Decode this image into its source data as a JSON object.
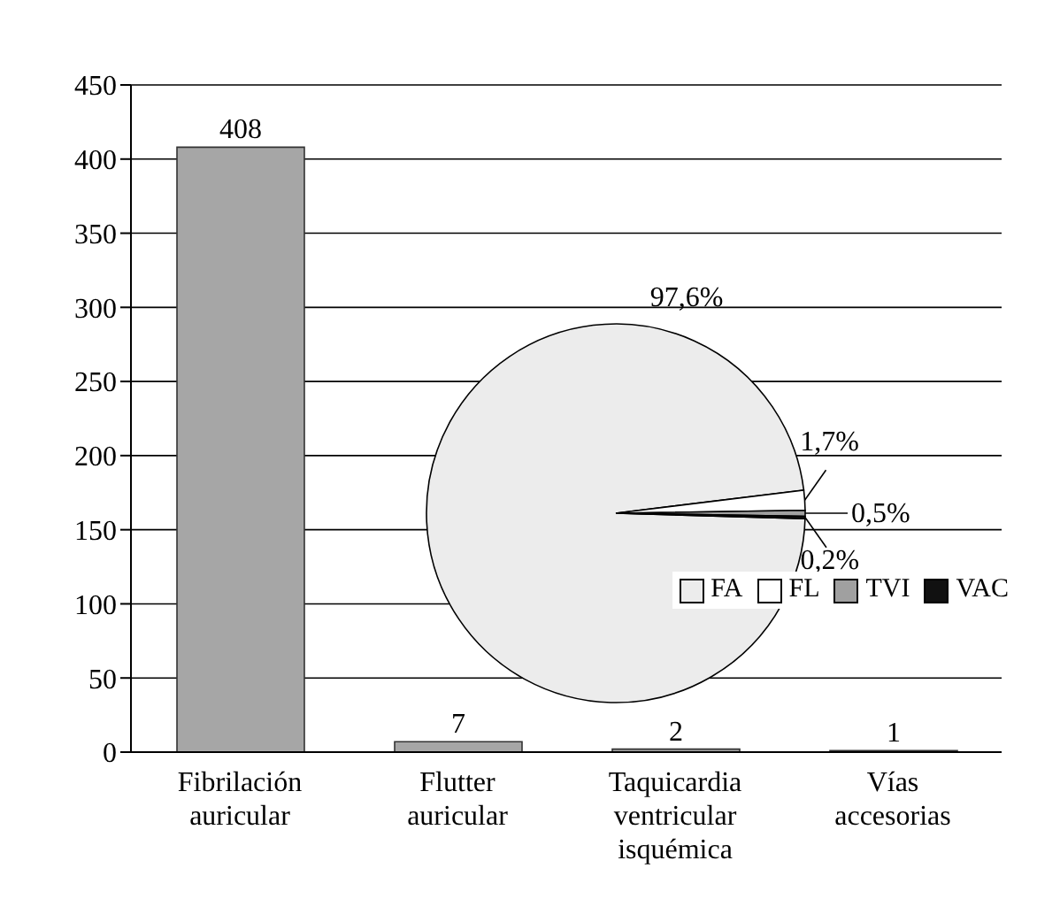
{
  "chart_data": [
    {
      "type": "bar",
      "categories": [
        "Fibrilación auricular",
        "Flutter auricular",
        "Taquicardia ventricular isquémica",
        "Vías accesorias"
      ],
      "values": [
        408,
        7,
        2,
        1
      ],
      "color": "#a6a6a6",
      "ylim": [
        0,
        450
      ],
      "yticks": [
        0,
        50,
        100,
        150,
        200,
        250,
        300,
        350,
        400,
        450
      ],
      "grid": "y",
      "data_labels": true
    },
    {
      "type": "pie",
      "categories": [
        "FA",
        "FL",
        "TVI",
        "VAC"
      ],
      "values": [
        97.6,
        1.7,
        0.5,
        0.2
      ],
      "colors": [
        "#ececec",
        "#ffffff",
        "#a0a0a0",
        "#111111"
      ],
      "value_labels": [
        "97,6%",
        "1,7%",
        "0,5%",
        "0,2%"
      ],
      "legend": "bottom right"
    }
  ]
}
